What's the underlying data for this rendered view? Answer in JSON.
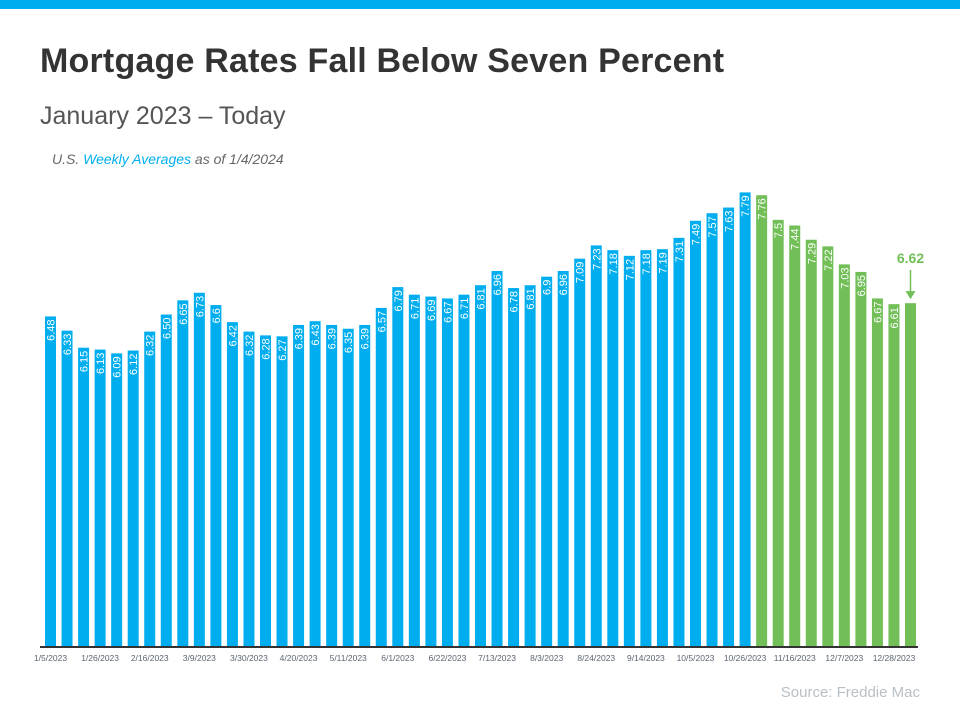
{
  "title": "Mortgage Rates Fall Below Seven Percent",
  "subtitle": "January 2023 – Today",
  "note": {
    "prefix": "U.S. ",
    "highlight": "Weekly Averages",
    "suffix": " as of 1/4/2024"
  },
  "source": "Source: Freddie Mac",
  "colors": {
    "blue": "#00aeef",
    "green": "#72bf58",
    "title": "#333333"
  },
  "chart_data": {
    "type": "bar",
    "ylim": [
      3.0,
      7.9
    ],
    "grid": false,
    "values": [
      6.48,
      6.33,
      6.15,
      6.13,
      6.09,
      6.12,
      6.32,
      6.5,
      6.65,
      6.73,
      6.6,
      6.42,
      6.32,
      6.28,
      6.27,
      6.39,
      6.43,
      6.39,
      6.35,
      6.39,
      6.57,
      6.79,
      6.71,
      6.69,
      6.67,
      6.71,
      6.81,
      6.96,
      6.78,
      6.81,
      6.9,
      6.96,
      7.09,
      7.23,
      7.18,
      7.12,
      7.18,
      7.19,
      7.31,
      7.49,
      7.57,
      7.63,
      7.79,
      7.76,
      7.5,
      7.44,
      7.29,
      7.22,
      7.03,
      6.95,
      6.67,
      6.61,
      6.62
    ],
    "data_labels": [
      "6.48",
      "6.33",
      "6.15",
      "6.13",
      "6.09",
      "6.12",
      "6.32",
      "6.50",
      "6.65",
      "6.73",
      "6.6",
      "6.42",
      "6.32",
      "6.28",
      "6.27",
      "6.39",
      "6.43",
      "6.39",
      "6.35",
      "6.39",
      "6.57",
      "6.79",
      "6.71",
      "6.69",
      "6.67",
      "6.71",
      "6.81",
      "6.96",
      "6.78",
      "6.81",
      "6.9",
      "6.96",
      "7.09",
      "7.23",
      "7.18",
      "7.12",
      "7.18",
      "7.19",
      "7.31",
      "7.49",
      "7.57",
      "7.63",
      "7.79",
      "7.76",
      "7.5",
      "7.44",
      "7.29",
      "7.22",
      "7.03",
      "6.95",
      "6.67",
      "6.61",
      ""
    ],
    "green_from_index": 43,
    "tick_labels": [
      "1/5/2023",
      "1/26/2023",
      "2/16/2023",
      "3/9/2023",
      "3/30/2023",
      "4/20/2023",
      "5/11/2023",
      "6/1/2023",
      "6/22/2023",
      "7/13/2023",
      "8/3/2023",
      "8/24/2023",
      "9/14/2023",
      "10/5/2023",
      "10/26/2023",
      "11/16/2023",
      "12/7/2023",
      "12/28/2023"
    ],
    "tick_every": 3,
    "annotation": {
      "text": "6.62",
      "index": 52
    }
  }
}
